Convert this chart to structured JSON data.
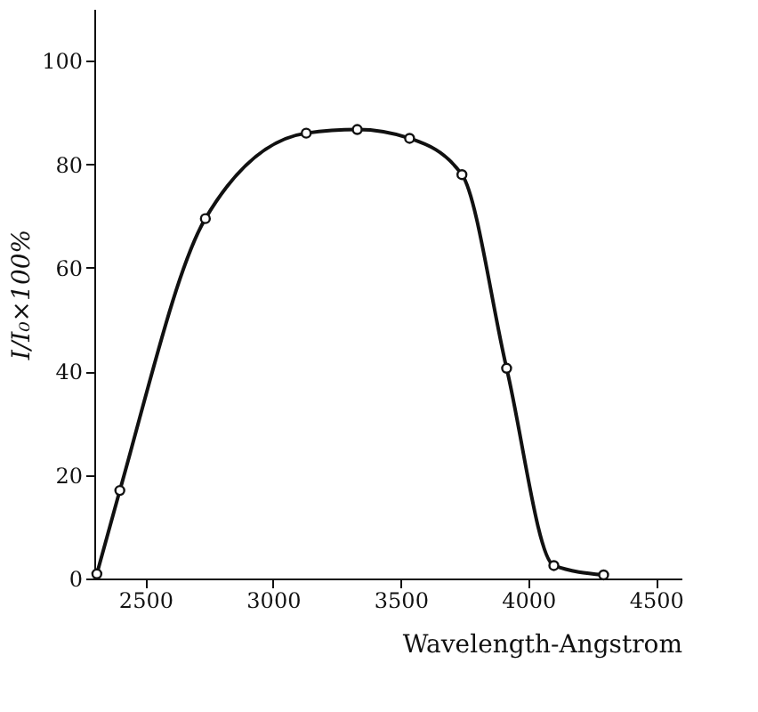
{
  "chart_data": {
    "type": "line",
    "xlabel": "Wavelength-Angstrom",
    "ylabel": "I/I₀×100%",
    "x": [
      2310,
      2400,
      2735,
      3130,
      3330,
      3535,
      3740,
      3915,
      4100,
      4295
    ],
    "series": [
      {
        "color": "#111111",
        "values": [
          0.9,
          17,
          69.5,
          86,
          86.7,
          85,
          78,
          40.6,
          2.5,
          0.7
        ]
      }
    ],
    "xlim": [
      2300,
      4600
    ],
    "xticks": [
      2500,
      3000,
      3500,
      4000,
      4500
    ],
    "ylim": [
      0,
      110
    ],
    "yticks": [
      0,
      20,
      40,
      60,
      80,
      100
    ],
    "grid": false,
    "marker": "circle",
    "line_style": "solid"
  }
}
